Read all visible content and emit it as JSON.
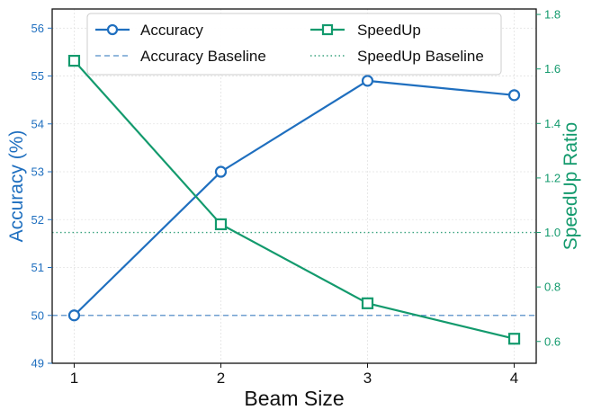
{
  "chart_data": {
    "type": "line",
    "categories": [
      "1",
      "2",
      "3",
      "4"
    ],
    "x": [
      1,
      2,
      3,
      4
    ],
    "xlabel": "Beam Size",
    "ylabel_left": "Accuracy (%)",
    "ylabel_right": "SpeedUp Ratio",
    "ylim_left": [
      49,
      56.4
    ],
    "yticks_left": [
      "49",
      "50",
      "51",
      "52",
      "53",
      "54",
      "55",
      "56"
    ],
    "ylim_right": [
      0.52,
      1.82
    ],
    "yticks_right": [
      "0.6",
      "0.8",
      "1.0",
      "1.2",
      "1.4",
      "1.6",
      "1.8"
    ],
    "grid": true,
    "legend_position": "top-center",
    "series": [
      {
        "name": "Accuracy",
        "axis": "left",
        "marker": "circle",
        "color": "#1f6fbf",
        "values": [
          50.0,
          53.0,
          54.9,
          54.6
        ]
      },
      {
        "name": "SpeedUp",
        "axis": "right",
        "marker": "square",
        "color": "#139a6d",
        "values": [
          1.63,
          1.03,
          0.74,
          0.61
        ]
      }
    ],
    "baselines": [
      {
        "name": "Accuracy Baseline",
        "axis": "left",
        "value": 50.0,
        "style": "dashed",
        "color": "#6f9fd0"
      },
      {
        "name": "SpeedUp Baseline",
        "axis": "right",
        "value": 1.0,
        "style": "dotted",
        "color": "#3aa37f"
      }
    ]
  }
}
